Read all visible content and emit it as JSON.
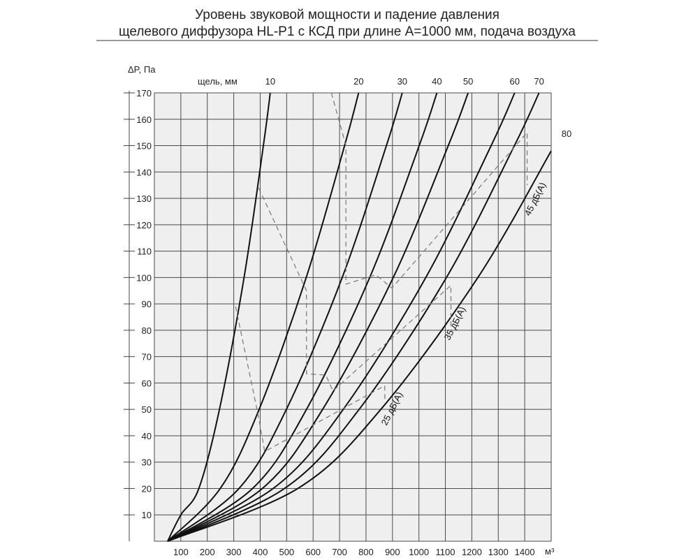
{
  "chart_data": {
    "type": "line",
    "title": [
      "Уровень звуковой мощности и падение давления",
      "щелевого диффузора HL-P1 с КСД при длине А=1000 мм, подача воздуха"
    ],
    "xlabel": "м³",
    "ylabel": "ΔP, Па",
    "series_label": "щель, мм",
    "xlim": [
      0,
      1500
    ],
    "ylim": [
      0,
      170
    ],
    "xticks": [
      100,
      200,
      300,
      400,
      500,
      600,
      700,
      800,
      900,
      1000,
      1100,
      1200,
      1300,
      1400
    ],
    "yticks": [
      10,
      20,
      30,
      40,
      50,
      60,
      70,
      80,
      90,
      100,
      110,
      120,
      130,
      140,
      150,
      160,
      170
    ],
    "grid": true,
    "series": [
      {
        "name": "10",
        "points": [
          [
            50,
            0
          ],
          [
            100,
            10
          ],
          [
            168,
            20
          ],
          [
            246,
            50
          ],
          [
            339,
            100
          ],
          [
            412,
            150
          ],
          [
            438,
            170
          ]
        ]
      },
      {
        "name": "20",
        "points": [
          [
            50,
            0
          ],
          [
            249,
            20
          ],
          [
            396,
            50
          ],
          [
            574,
            100
          ],
          [
            719,
            150
          ],
          [
            772,
            170
          ]
        ]
      },
      {
        "name": "30",
        "points": [
          [
            50,
            0
          ],
          [
            320,
            20
          ],
          [
            499,
            50
          ],
          [
            710,
            100
          ],
          [
            877,
            150
          ],
          [
            937,
            170
          ]
        ]
      },
      {
        "name": "40",
        "points": [
          [
            50,
            0
          ],
          [
            371,
            20
          ],
          [
            575,
            50
          ],
          [
            814,
            100
          ],
          [
            1001,
            150
          ],
          [
            1068,
            170
          ]
        ]
      },
      {
        "name": "50",
        "points": [
          [
            50,
            0
          ],
          [
            408,
            20
          ],
          [
            636,
            50
          ],
          [
            903,
            100
          ],
          [
            1111,
            150
          ],
          [
            1186,
            170
          ]
        ]
      },
      {
        "name": "60",
        "points": [
          [
            50,
            0
          ],
          [
            449,
            20
          ],
          [
            714,
            50
          ],
          [
            1026,
            100
          ],
          [
            1273,
            150
          ],
          [
            1362,
            170
          ]
        ]
      },
      {
        "name": "70",
        "points": [
          [
            50,
            0
          ],
          [
            492,
            20
          ],
          [
            774,
            50
          ],
          [
            1104,
            100
          ],
          [
            1361,
            150
          ],
          [
            1454,
            170
          ]
        ]
      },
      {
        "name": "80",
        "points": [
          [
            50,
            0
          ],
          [
            542,
            20
          ],
          [
            856,
            50
          ],
          [
            1223,
            100
          ],
          [
            1500,
            148
          ]
        ]
      }
    ],
    "sound_levels": [
      {
        "name": "25 дБ(А)",
        "points": [
          [
            307,
            89
          ],
          [
            394,
            47
          ],
          [
            417,
            34
          ],
          [
            871,
            59
          ],
          [
            871,
            54
          ]
        ]
      },
      {
        "name": "35 дБ(А)",
        "points": [
          [
            394,
            134
          ],
          [
            575,
            95
          ],
          [
            575,
            63.5
          ],
          [
            648,
            63
          ],
          [
            675,
            57
          ],
          [
            1121,
            97
          ],
          [
            1121,
            79.5
          ]
        ]
      },
      {
        "name": "45 дБ(А)",
        "points": [
          [
            669,
            170
          ],
          [
            724,
            150
          ],
          [
            724,
            97.5
          ],
          [
            837,
            101
          ],
          [
            898,
            96
          ],
          [
            1409,
            155
          ],
          [
            1409,
            135
          ]
        ]
      }
    ]
  }
}
